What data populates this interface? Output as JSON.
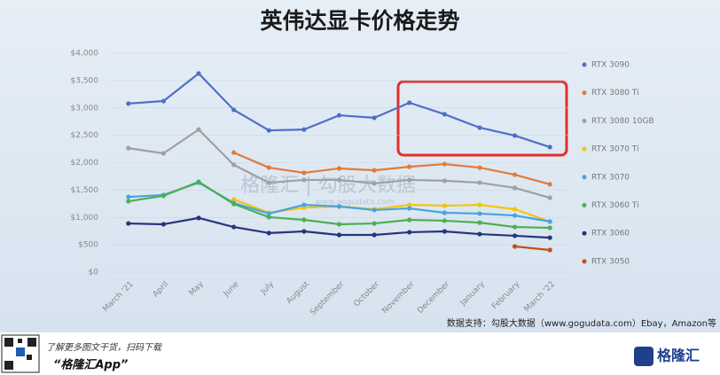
{
  "chart_data": {
    "type": "line",
    "title": "英伟达显卡价格走势",
    "categories": [
      "March '21",
      "April",
      "May",
      "June",
      "July",
      "August",
      "September",
      "October",
      "November",
      "December",
      "January",
      "February",
      "March '22"
    ],
    "series": [
      {
        "name": "RTX 3090",
        "color": "#4f6fc6",
        "values": [
          3080,
          3125,
          3630,
          2965,
          2590,
          2605,
          2865,
          2820,
          3095,
          2885,
          2640,
          2495,
          2285
        ]
      },
      {
        "name": "RTX 3080 Ti",
        "color": "#e07b39",
        "values": [
          null,
          null,
          null,
          2185,
          1910,
          1815,
          1895,
          1860,
          1925,
          1975,
          1910,
          1780,
          1605
        ]
      },
      {
        "name": "RTX 3080 10GB",
        "color": "#a0a0a0",
        "values": [
          2265,
          2170,
          2605,
          1960,
          1635,
          1685,
          1685,
          1620,
          1685,
          1670,
          1635,
          1540,
          1360
        ]
      },
      {
        "name": "RTX 3070 Ti",
        "color": "#f2c40c",
        "values": [
          null,
          null,
          null,
          1330,
          1085,
          1180,
          1200,
          1150,
          1230,
          1215,
          1230,
          1150,
          925
        ]
      },
      {
        "name": "RTX 3070",
        "color": "#4aa3df",
        "values": [
          1375,
          1410,
          1635,
          1265,
          1070,
          1230,
          1200,
          1135,
          1165,
          1085,
          1070,
          1035,
          925
        ]
      },
      {
        "name": "RTX 3060 Ti",
        "color": "#4cb050",
        "values": [
          1295,
          1395,
          1650,
          1245,
          1005,
          955,
          875,
          890,
          955,
          940,
          905,
          825,
          810
        ]
      },
      {
        "name": "RTX 3060",
        "color": "#25357a",
        "values": [
          890,
          875,
          990,
          825,
          715,
          745,
          680,
          680,
          730,
          745,
          695,
          665,
          630
        ]
      },
      {
        "name": "RTX 3050",
        "color": "#c0501c",
        "values": [
          null,
          null,
          null,
          null,
          null,
          null,
          null,
          null,
          null,
          null,
          null,
          470,
          405
        ]
      }
    ],
    "ylim": [
      0,
      4000
    ],
    "yticks": [
      {
        "value": 0,
        "label": "$0"
      },
      {
        "value": 500,
        "label": "$500"
      },
      {
        "value": 1000,
        "label": "$1,000"
      },
      {
        "value": 1500,
        "label": "$1,500"
      },
      {
        "value": 2000,
        "label": "$2,000"
      },
      {
        "value": 2500,
        "label": "$2,500"
      },
      {
        "value": 3000,
        "label": "$3,000"
      },
      {
        "value": 3500,
        "label": "$3,500"
      },
      {
        "value": 4000,
        "label": "$4,000"
      }
    ],
    "legend": "right",
    "source": "数据支持：勾股大数据（www.gogudata.com）Ebay，Amazon等",
    "watermark": "格隆汇 | 勾股大数据",
    "watermark_url": "www.gogudata.com"
  },
  "footer": {
    "text": "了解更多图文干货，扫码下载",
    "app": "“格隆汇App”",
    "logo": "格隆汇"
  }
}
